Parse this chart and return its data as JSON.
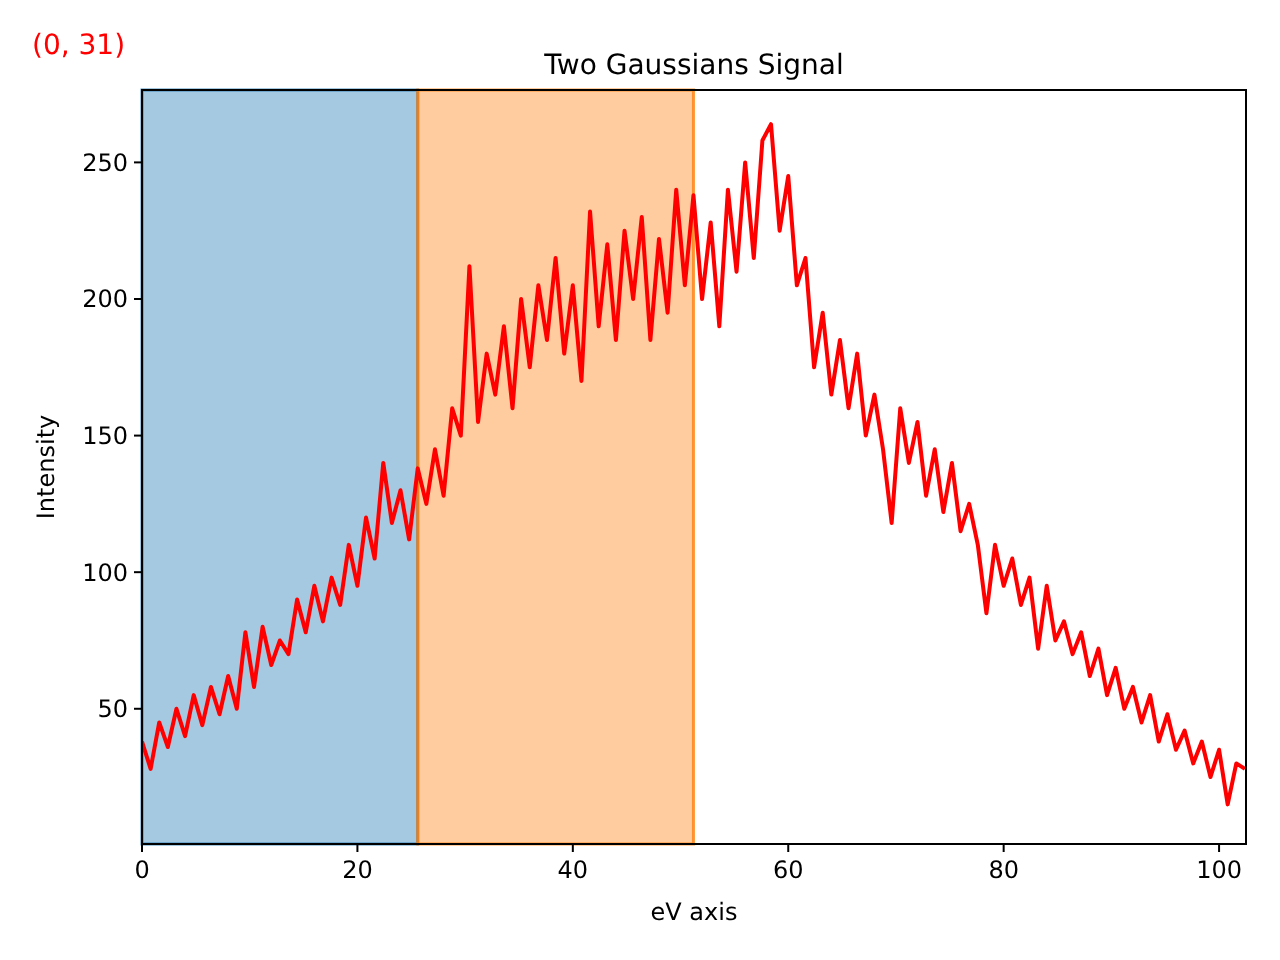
{
  "chart_data": {
    "type": "line",
    "title": "Two Gaussians Signal",
    "xlabel": "eV axis",
    "ylabel": "Intensity",
    "annotations": [
      "(0, 31)"
    ],
    "x": [
      0,
      0.8,
      1.6,
      2.4,
      3.2,
      4,
      4.8,
      5.6,
      6.4,
      7.2,
      8,
      8.8,
      9.6,
      10.4,
      11.2,
      12,
      12.8,
      13.6,
      14.4,
      15.2,
      16,
      16.8,
      17.6,
      18.4,
      19.2,
      20,
      20.8,
      21.6,
      22.4,
      23.2,
      24,
      24.8,
      25.6,
      26.4,
      27.2,
      28,
      28.8,
      29.6,
      30.4,
      31.2,
      32,
      32.8,
      33.6,
      34.4,
      35.2,
      36,
      36.8,
      37.6,
      38.4,
      39.2,
      40,
      40.8,
      41.6,
      42.4,
      43.2,
      44,
      44.8,
      45.6,
      46.4,
      47.2,
      48,
      48.8,
      49.6,
      50.4,
      51.2,
      52,
      52.8,
      53.6,
      54.4,
      55.2,
      56,
      56.8,
      57.6,
      58.4,
      59.2,
      60,
      60.8,
      61.6,
      62.4,
      63.2,
      64,
      64.8,
      65.6,
      66.4,
      67.2,
      68,
      68.8,
      69.6,
      70.4,
      71.2,
      72,
      72.8,
      73.6,
      74.4,
      75.2,
      76,
      76.8,
      77.6,
      78.4,
      79.2,
      80,
      80.8,
      81.6,
      82.4,
      83.2,
      84,
      84.8,
      85.6,
      86.4,
      87.2,
      88,
      88.8,
      89.6,
      90.4,
      91.2,
      92,
      92.8,
      93.6,
      94.4,
      95.2,
      96,
      96.8,
      97.6,
      98.4,
      99.2,
      100,
      100.8,
      101.6,
      102.4
    ],
    "series": [
      {
        "color": "#ff0000",
        "values": [
          38,
          28,
          45,
          36,
          50,
          40,
          55,
          44,
          58,
          48,
          62,
          50,
          78,
          58,
          80,
          66,
          75,
          70,
          90,
          78,
          95,
          82,
          98,
          88,
          110,
          95,
          120,
          105,
          140,
          118,
          130,
          112,
          138,
          125,
          145,
          128,
          160,
          150,
          212,
          155,
          180,
          165,
          190,
          160,
          200,
          175,
          205,
          185,
          215,
          180,
          205,
          170,
          232,
          190,
          220,
          185,
          225,
          200,
          230,
          185,
          222,
          195,
          240,
          205,
          238,
          200,
          228,
          190,
          240,
          210,
          250,
          215,
          258,
          264,
          225,
          245,
          205,
          215,
          175,
          195,
          165,
          185,
          160,
          180,
          150,
          165,
          145,
          118,
          160,
          140,
          155,
          128,
          145,
          122,
          140,
          115,
          125,
          110,
          85,
          110,
          95,
          105,
          88,
          98,
          72,
          95,
          75,
          82,
          70,
          78,
          62,
          72,
          55,
          65,
          50,
          58,
          45,
          55,
          38,
          48,
          35,
          42,
          30,
          38,
          25,
          35,
          15,
          30,
          28
        ]
      }
    ],
    "bands": [
      {
        "axis": "x",
        "from": 0,
        "to": 25.6,
        "color": "#1f77b4"
      },
      {
        "axis": "x",
        "from": 25.6,
        "to": 51.2,
        "color": "#ff7f0e"
      }
    ],
    "xlim": [
      0,
      102.5
    ],
    "ylim": [
      0.5,
      276.5
    ],
    "xticks": [
      0,
      20,
      40,
      60,
      80,
      100
    ],
    "yticks": [
      50,
      100,
      150,
      200,
      250
    ],
    "grid": false,
    "marker": "none",
    "line_style": "solid"
  }
}
